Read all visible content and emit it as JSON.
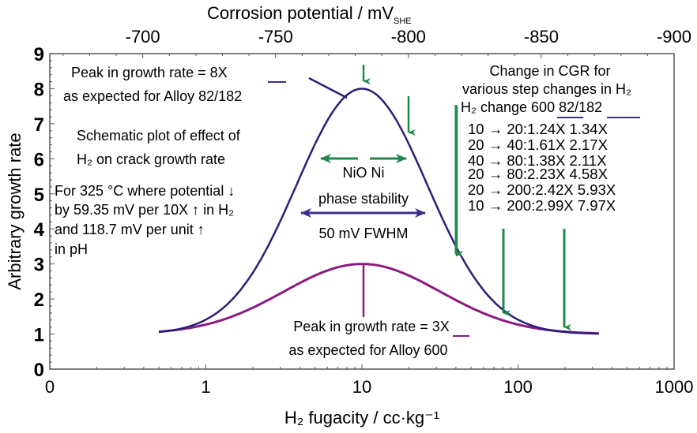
{
  "chart_data": {
    "type": "line",
    "title": "",
    "xlabel": "H₂ fugacity / cc·kg⁻¹",
    "x_scale": "log",
    "xlim": [
      0.1,
      1000
    ],
    "x_ticks": [
      {
        "value": 0.1,
        "label": "0"
      },
      {
        "value": 1,
        "label": "1"
      },
      {
        "value": 10,
        "label": "10"
      },
      {
        "value": 100,
        "label": "100"
      },
      {
        "value": 1000,
        "label": "1000"
      }
    ],
    "top_axis": {
      "label_main": "Corrosion potential / mV",
      "label_sub": "SHE",
      "ticks": [
        {
          "value": -700,
          "label": "-700"
        },
        {
          "value": -750,
          "label": "-750"
        },
        {
          "value": -800,
          "label": "-800"
        },
        {
          "value": -850,
          "label": "-850"
        },
        {
          "value": -900,
          "label": "-900"
        }
      ],
      "range": [
        -665,
        -900
      ]
    },
    "ylabel": "Arbitrary growth rate",
    "ylim": [
      0,
      9
    ],
    "y_ticks": [
      0,
      1,
      2,
      3,
      4,
      5,
      6,
      7,
      8,
      9
    ],
    "grid": false,
    "series": [
      {
        "name": "Alloy 82/182",
        "color": "#2a1f7a",
        "peak_x": 10,
        "peak_y": 8,
        "baseline": 1,
        "x_range": [
          0.5,
          330
        ],
        "x": [
          0.5,
          1,
          2,
          3,
          5,
          7,
          10,
          15,
          20,
          30,
          40,
          60,
          100,
          150,
          200,
          330
        ],
        "y": [
          1.0,
          1.15,
          1.9,
          3.0,
          5.1,
          6.7,
          8.0,
          7.0,
          5.9,
          3.9,
          2.7,
          1.6,
          1.1,
          1.02,
          1.0,
          1.0
        ]
      },
      {
        "name": "Alloy 600",
        "color": "#8b1a7f",
        "peak_x": 10,
        "peak_y": 3,
        "baseline": 1,
        "x_range": [
          0.5,
          330
        ],
        "x": [
          0.5,
          1,
          2,
          3,
          5,
          7,
          10,
          15,
          20,
          30,
          40,
          60,
          100,
          150,
          200,
          330
        ],
        "y": [
          1.0,
          1.05,
          1.35,
          1.75,
          2.4,
          2.8,
          3.0,
          2.8,
          2.5,
          2.0,
          1.65,
          1.3,
          1.05,
          1.0,
          1.0,
          1.0
        ]
      }
    ],
    "annotations": {
      "peak82_line1": "Peak in growth rate = 8X",
      "peak82_line2": "as expected for Alloy 82/182",
      "schematic_line1": "Schematic plot of effect of",
      "schematic_line2": "H₂ on crack growth rate",
      "note_line1": "For 325 °C where potential ↓",
      "note_line2": "by 59.35 mV per 10X ↑ in H₂",
      "note_line3": "and 118.7 mV per unit ↑",
      "note_line4": "in pH",
      "phase_line1": "NiO Ni",
      "phase_line2": "phase stability",
      "fwhm": "50 mV FWHM",
      "peak600_line1": "Peak in growth rate = 3X",
      "peak600_line2": "as expected for Alloy 600",
      "cgr_title1": "Change in CGR for",
      "cgr_title2": "various step changes in H₂",
      "cgr_header": "H₂ change 600 82/182"
    },
    "cgr_table": {
      "columns": [
        "H₂ change",
        "600",
        "82/182"
      ],
      "rows": [
        {
          "change": "10 → 20",
          "alloy600": "1.24X",
          "alloy82": "1.34X"
        },
        {
          "change": "20 → 40",
          "alloy600": "1.61X",
          "alloy82": "2.17X"
        },
        {
          "change": "40 → 80",
          "alloy600": "1.38X",
          "alloy82": "2.11X"
        },
        {
          "change": "20 → 80",
          "alloy600": "2.23X",
          "alloy82": "4.58X"
        },
        {
          "change": "20 → 200",
          "alloy600": "2.42X",
          "alloy82": "5.93X"
        },
        {
          "change": "10 → 200",
          "alloy600": "2.99X",
          "alloy82": "7.97X"
        }
      ]
    },
    "green_arrows_at_x": [
      10,
      20,
      40,
      80,
      200
    ],
    "colors": {
      "arrow_green": "#1e8a4a",
      "curve_82": "#2a1f7a",
      "curve_600": "#8b1a7f",
      "frame": "#555555"
    }
  }
}
